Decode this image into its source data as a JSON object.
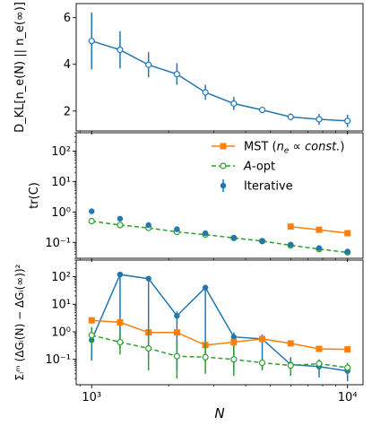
{
  "chart_data": [
    {
      "panel": "top",
      "type": "line",
      "ylabel": "D_KL[n_e(N) || n_e(∞)]",
      "yscale": "linear",
      "ylim": [
        1.15,
        6.6
      ],
      "yticks": [
        2,
        4,
        6
      ],
      "ytick_labels": [
        "2",
        "4",
        "6"
      ],
      "xscale": "log",
      "xlim": [
        870,
        11500
      ],
      "legend": null,
      "series": [
        {
          "name": "",
          "color": "#1f77b4",
          "marker": "open-circle",
          "linestyle": "solid",
          "x": [
            1000,
            1291,
            1668,
            2154,
            2783,
            3594,
            4642,
            5995,
            7743,
            10000
          ],
          "y": [
            5.0,
            4.62,
            3.98,
            3.58,
            2.8,
            2.32,
            2.05,
            1.75,
            1.65,
            1.58
          ],
          "yerr_low": [
            3.78,
            3.82,
            3.45,
            3.12,
            2.48,
            2.05,
            1.95,
            1.6,
            1.42,
            1.32
          ],
          "yerr_high": [
            6.22,
            5.42,
            4.52,
            4.05,
            3.12,
            2.6,
            2.17,
            1.9,
            1.88,
            1.85
          ]
        }
      ]
    },
    {
      "panel": "middle",
      "type": "line",
      "ylabel": "tr(C)",
      "yscale": "log",
      "ylim": [
        0.03,
        400
      ],
      "yticks": [
        0.1,
        1,
        10,
        100
      ],
      "ytick_labels": [
        "10⁻¹",
        "10⁰",
        "10¹",
        "10²"
      ],
      "xscale": "log",
      "xlim": [
        870,
        11500
      ],
      "legend": "top-right",
      "series": [
        {
          "name": "MST (n_e ∝ const.)",
          "legend_main": "MST (",
          "legend_var": "n",
          "legend_sub": "e",
          "legend_rest": " ∝ ",
          "legend_const": "const.",
          "legend_close": ")",
          "color": "#ff7f0e",
          "marker": "square",
          "linestyle": "solid",
          "x": [
            5995,
            7743,
            10000
          ],
          "y": [
            0.33,
            0.26,
            0.2
          ]
        },
        {
          "name": "A-opt",
          "legend_var": "A",
          "legend_rest": "-opt",
          "color": "#2ca02c",
          "marker": "open-circle",
          "linestyle": "dashed",
          "x": [
            1000,
            1291,
            1668,
            2154,
            2783,
            3594,
            4642,
            5995,
            7743,
            10000
          ],
          "y": [
            0.5,
            0.37,
            0.3,
            0.22,
            0.18,
            0.14,
            0.11,
            0.08,
            0.06,
            0.047
          ]
        },
        {
          "name": "Iterative",
          "color": "#1f77b4",
          "marker": "filled-circle",
          "linestyle": "none",
          "x": [
            1000,
            1291,
            1668,
            2154,
            2783,
            3594,
            4642,
            5995,
            7743,
            10000
          ],
          "y": [
            1.05,
            0.6,
            0.37,
            0.27,
            0.2,
            0.14,
            0.11,
            0.085,
            0.065,
            0.05
          ]
        }
      ]
    },
    {
      "panel": "bottom",
      "type": "line",
      "ylabel": "Σᵢᵐ (ΔGᵢ(N) − ΔGᵢ(∞))²",
      "yscale": "log",
      "ylim": [
        0.012,
        400
      ],
      "yticks": [
        0.1,
        1,
        10,
        100
      ],
      "ytick_labels": [
        "10⁻¹",
        "10⁰",
        "10¹",
        "10²"
      ],
      "xscale": "log",
      "xlabel": "N",
      "xlim": [
        870,
        11500
      ],
      "xticks": [
        1000,
        10000
      ],
      "xtick_labels": [
        "10³",
        "10⁴"
      ],
      "legend": null,
      "series": [
        {
          "name": "",
          "color": "#1f77b4",
          "marker": "filled-circle",
          "linestyle": "solid",
          "x": [
            1000,
            1291,
            1668,
            2154,
            2783,
            3594,
            4642,
            5995,
            7743,
            10000
          ],
          "y": [
            0.5,
            120,
            85,
            3.8,
            40,
            0.65,
            0.55,
            0.065,
            0.055,
            0.038
          ],
          "yerr_low": [
            0.09,
            0.25,
            0.1,
            0.04,
            0.08,
            0.05,
            0.04,
            0.025,
            0.022,
            0.016
          ],
          "yerr_high": [
            1.4,
            125,
            88,
            5.5,
            42,
            0.95,
            0.8,
            0.12,
            0.09,
            0.07
          ]
        },
        {
          "name": "",
          "color": "#ff7f0e",
          "marker": "square",
          "linestyle": "solid",
          "x": [
            1000,
            1291,
            1668,
            2154,
            2783,
            3594,
            4642,
            5995,
            7743,
            10000
          ],
          "y": [
            2.6,
            2.2,
            0.95,
            0.95,
            0.33,
            0.42,
            0.55,
            0.38,
            0.24,
            0.23
          ]
        },
        {
          "name": "",
          "color": "#2ca02c",
          "marker": "open-circle",
          "linestyle": "dashed",
          "x": [
            1000,
            1291,
            1668,
            2154,
            2783,
            3594,
            4642,
            5995,
            7743,
            10000
          ],
          "y": [
            0.75,
            0.42,
            0.25,
            0.13,
            0.12,
            0.1,
            0.075,
            0.06,
            0.07,
            0.05
          ],
          "yerr_low": [
            0.3,
            0.15,
            0.04,
            0.02,
            0.03,
            0.025,
            0.045,
            0.03,
            0.04,
            0.03
          ],
          "yerr_high": [
            1.5,
            1.0,
            1.8,
            0.45,
            0.4,
            0.3,
            0.11,
            0.09,
            0.1,
            0.075
          ]
        }
      ]
    }
  ]
}
